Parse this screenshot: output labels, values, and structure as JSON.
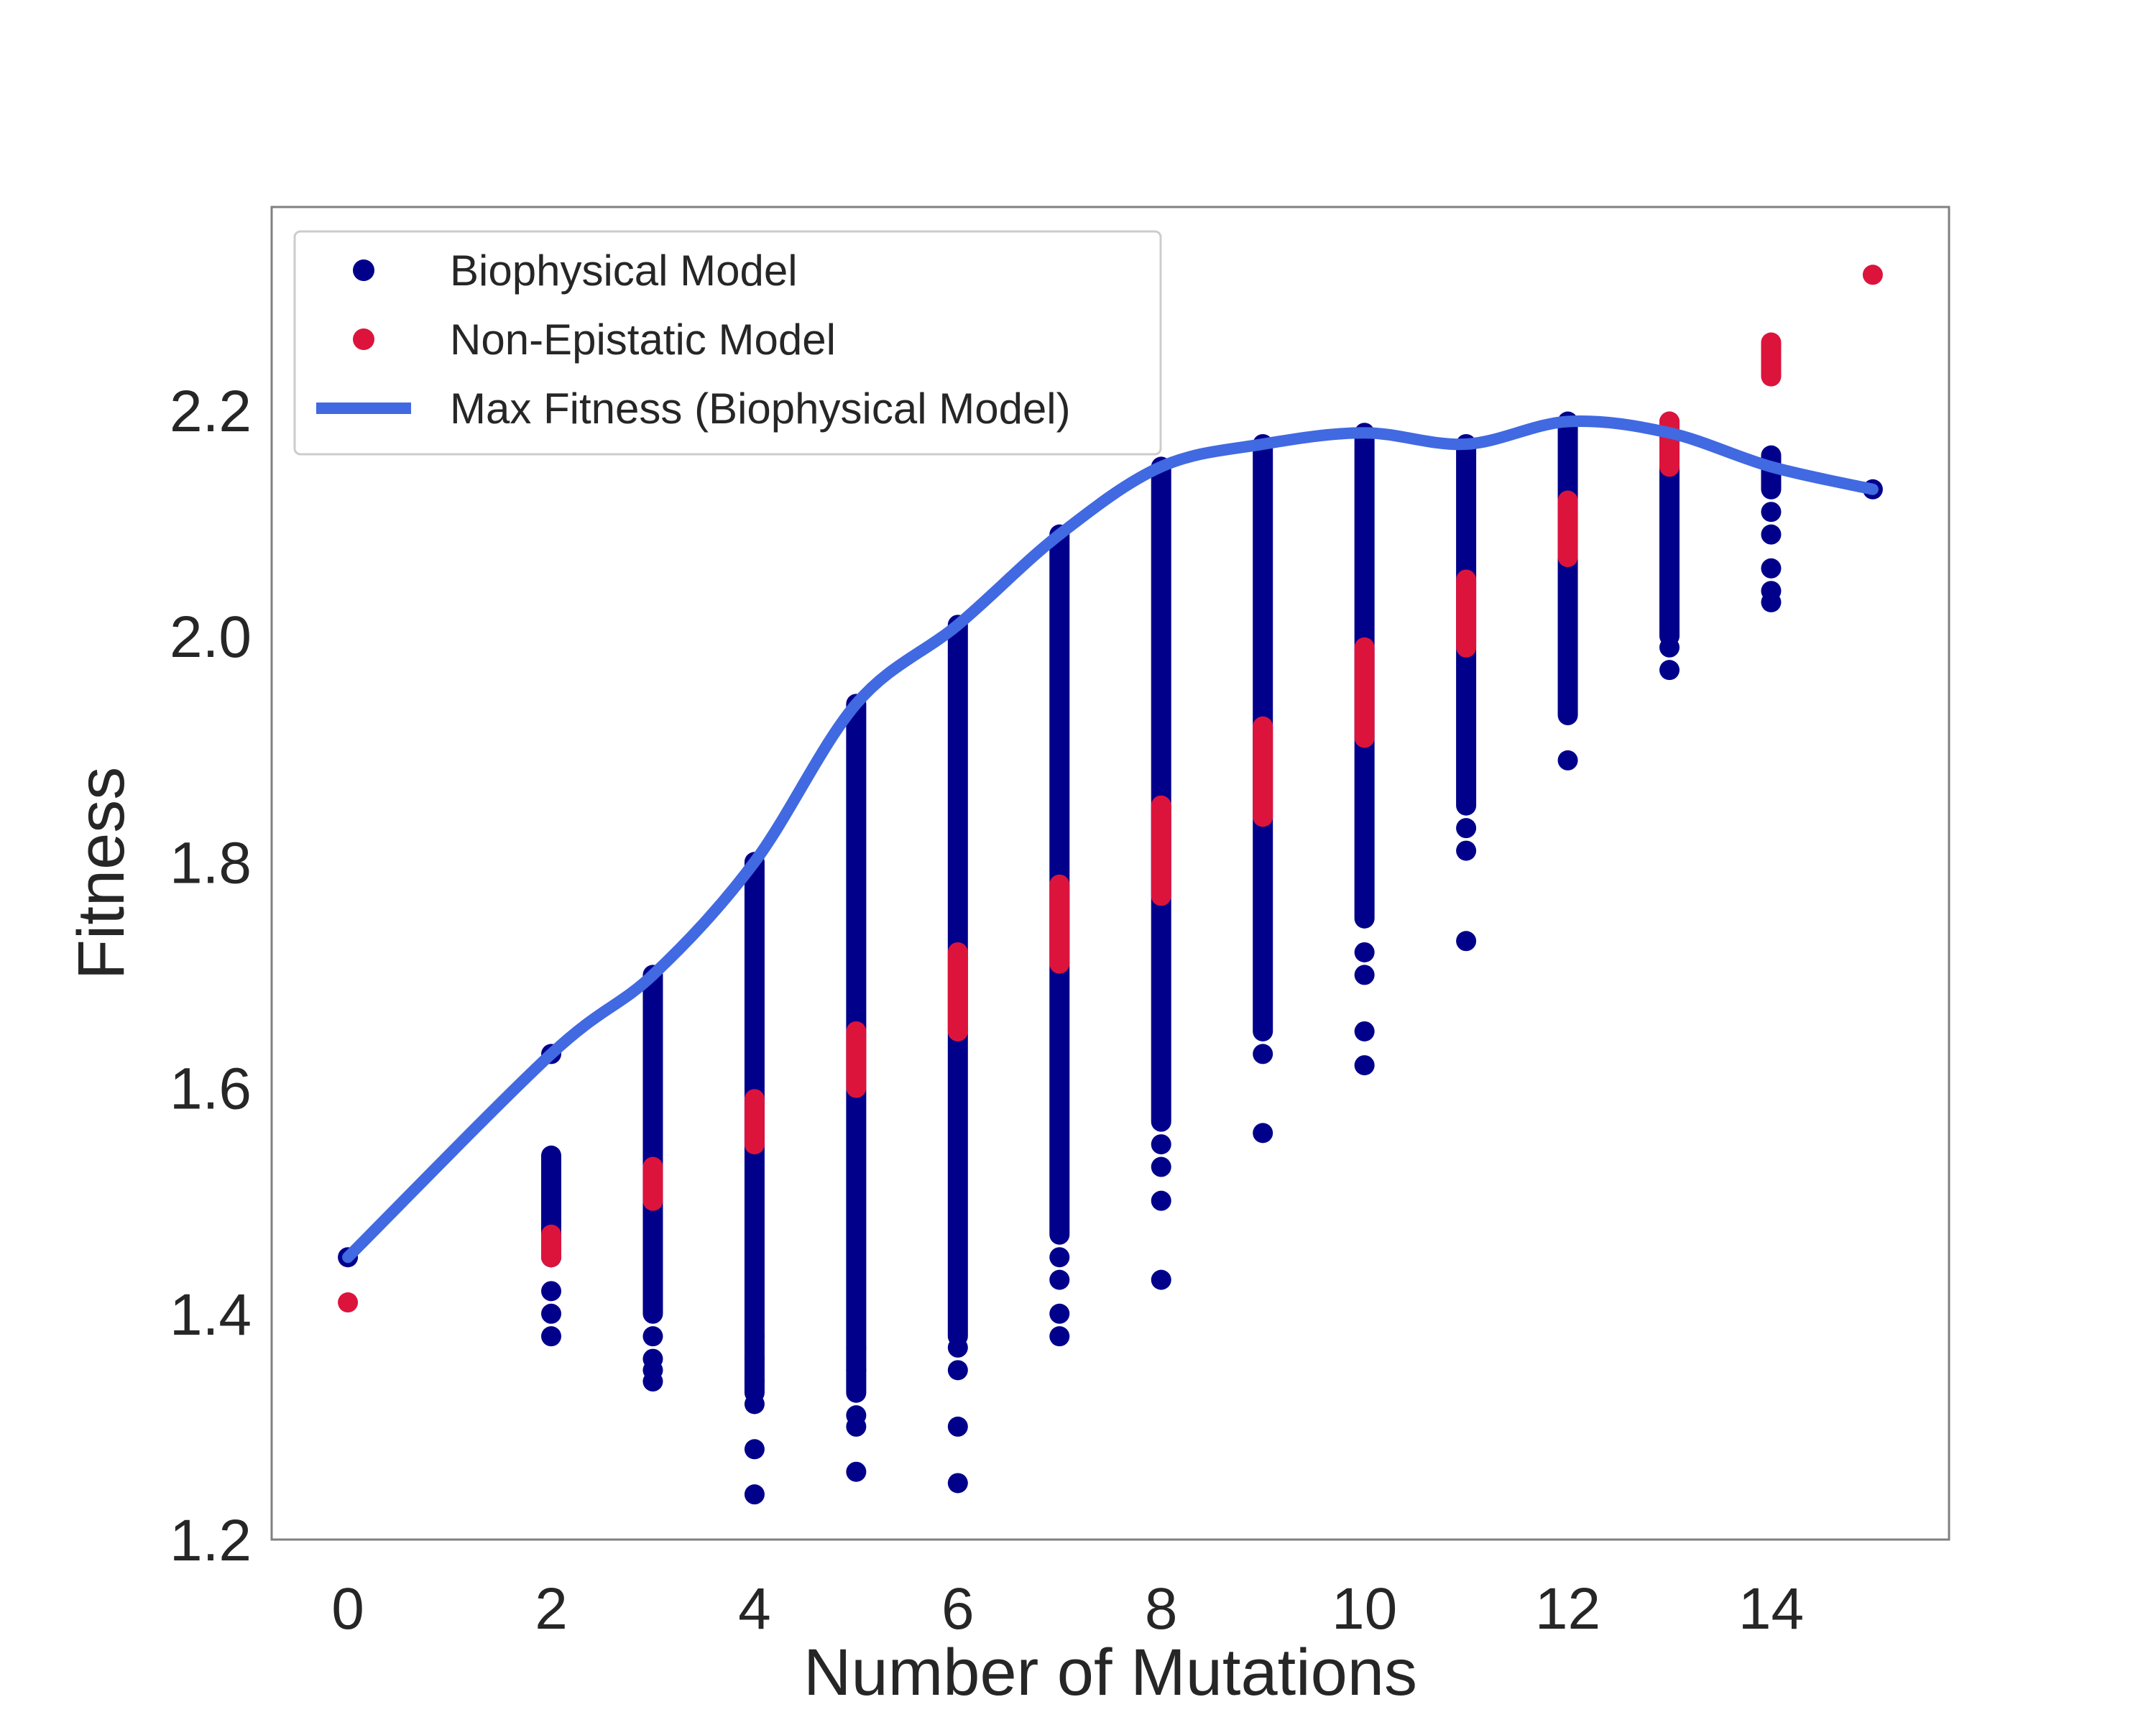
{
  "chart_data": {
    "type": "scatter",
    "xlabel": "Number of Mutations",
    "ylabel": "Fitness",
    "xlim": [
      -0.75,
      15.75
    ],
    "ylim": [
      1.2,
      2.38
    ],
    "xticks": [
      0,
      2,
      4,
      6,
      8,
      10,
      12,
      14
    ],
    "yticks": [
      1.2,
      1.4,
      1.6,
      1.8,
      2.0,
      2.2
    ],
    "xtick_labels": [
      "0",
      "2",
      "4",
      "6",
      "8",
      "10",
      "12",
      "14"
    ],
    "ytick_labels": [
      "1.2",
      "1.4",
      "1.6",
      "1.8",
      "2.0",
      "2.2"
    ],
    "grid": false,
    "legend_position": "upper-left",
    "legend": [
      {
        "label": "Biophysical Model",
        "kind": "marker",
        "color": "#00008b"
      },
      {
        "label": "Non-Epistatic Model",
        "kind": "marker",
        "color": "#dc143c"
      },
      {
        "label": "Max Fitness (Biophysical Model)",
        "kind": "line",
        "color": "#4169e1"
      }
    ],
    "series": [
      {
        "name": "Biophysical Model",
        "color": "#00008b",
        "columns": [
          {
            "x": 0,
            "range": null,
            "points": [
              1.45
            ]
          },
          {
            "x": 2,
            "range": [
              1.45,
              1.54
            ],
            "points": [
              1.38,
              1.4,
              1.42,
              1.45,
              1.63
            ]
          },
          {
            "x": 3,
            "range": [
              1.4,
              1.7
            ],
            "points": [
              1.34,
              1.35,
              1.36,
              1.38
            ]
          },
          {
            "x": 4,
            "range": [
              1.33,
              1.8
            ],
            "points": [
              1.24,
              1.28,
              1.32,
              1.34,
              1.36,
              1.38
            ]
          },
          {
            "x": 5,
            "range": [
              1.33,
              1.94
            ],
            "points": [
              1.26,
              1.3,
              1.31,
              1.35,
              1.37
            ]
          },
          {
            "x": 6,
            "range": [
              1.38,
              2.01
            ],
            "points": [
              1.25,
              1.3,
              1.35,
              1.37
            ]
          },
          {
            "x": 7,
            "range": [
              1.47,
              2.09
            ],
            "points": [
              1.38,
              1.4,
              1.43,
              1.45
            ]
          },
          {
            "x": 8,
            "range": [
              1.57,
              2.15
            ],
            "points": [
              1.43,
              1.5,
              1.53,
              1.55
            ]
          },
          {
            "x": 9,
            "range": [
              1.65,
              2.17
            ],
            "points": [
              1.56,
              1.63
            ]
          },
          {
            "x": 10,
            "range": [
              1.75,
              2.18
            ],
            "points": [
              1.62,
              1.65,
              1.7,
              1.72
            ]
          },
          {
            "x": 11,
            "range": [
              1.85,
              2.17
            ],
            "points": [
              1.73,
              1.81,
              1.83
            ]
          },
          {
            "x": 12,
            "range": [
              1.93,
              2.19
            ],
            "points": [
              1.89
            ]
          },
          {
            "x": 13,
            "range": [
              2.0,
              2.19
            ],
            "points": [
              1.97,
              1.99
            ]
          },
          {
            "x": 14,
            "range": [
              2.13,
              2.16
            ],
            "points": [
              2.03,
              2.04,
              2.06,
              2.09,
              2.11
            ]
          },
          {
            "x": 15,
            "range": null,
            "points": [
              2.13
            ]
          }
        ]
      },
      {
        "name": "Non-Epistatic Model",
        "color": "#dc143c",
        "columns": [
          {
            "x": 0,
            "range": null,
            "points": [
              1.41
            ]
          },
          {
            "x": 2,
            "range": [
              1.45,
              1.47
            ],
            "points": []
          },
          {
            "x": 3,
            "range": [
              1.5,
              1.53
            ],
            "points": []
          },
          {
            "x": 4,
            "range": [
              1.55,
              1.59
            ],
            "points": []
          },
          {
            "x": 5,
            "range": [
              1.6,
              1.65
            ],
            "points": []
          },
          {
            "x": 6,
            "range": [
              1.65,
              1.72
            ],
            "points": []
          },
          {
            "x": 7,
            "range": [
              1.71,
              1.78
            ],
            "points": []
          },
          {
            "x": 8,
            "range": [
              1.77,
              1.85
            ],
            "points": []
          },
          {
            "x": 9,
            "range": [
              1.84,
              1.92
            ],
            "points": []
          },
          {
            "x": 10,
            "range": [
              1.91,
              1.99
            ],
            "points": []
          },
          {
            "x": 11,
            "range": [
              1.99,
              2.05
            ],
            "points": []
          },
          {
            "x": 12,
            "range": [
              2.07,
              2.12
            ],
            "points": []
          },
          {
            "x": 13,
            "range": [
              2.15,
              2.19
            ],
            "points": []
          },
          {
            "x": 14,
            "range": [
              2.23,
              2.26
            ],
            "points": []
          },
          {
            "x": 15,
            "range": null,
            "points": [
              2.32
            ]
          }
        ]
      },
      {
        "name": "Max Fitness (Biophysical Model)",
        "type": "line",
        "color": "#4169e1",
        "x": [
          0,
          2,
          3,
          4,
          5,
          6,
          7,
          8,
          9,
          10,
          11,
          12,
          13,
          14,
          15
        ],
        "y": [
          1.45,
          1.63,
          1.7,
          1.8,
          1.94,
          2.01,
          2.09,
          2.15,
          2.17,
          2.18,
          2.17,
          2.19,
          2.18,
          2.15,
          2.13
        ]
      }
    ]
  }
}
